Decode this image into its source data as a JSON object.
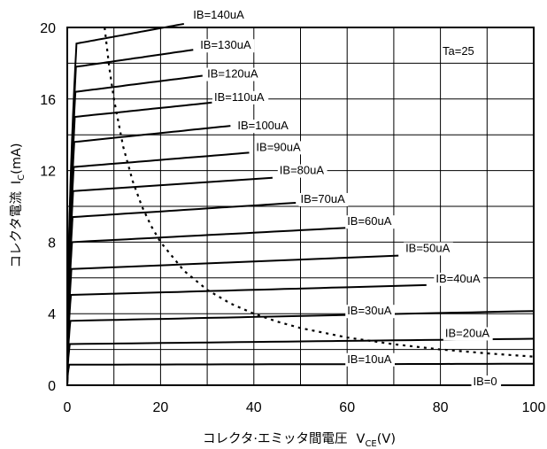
{
  "chart_data": {
    "type": "line",
    "title": "",
    "xlabel_main": "コレクタ·エミッタ間電圧",
    "xlabel_sym": "V",
    "xlabel_sub": "CE",
    "xlabel_unit": "(V)",
    "ylabel_main": "コレクタ電流",
    "ylabel_sym": "I",
    "ylabel_sub": "C",
    "ylabel_unit": "(mA)",
    "xlim": [
      0,
      100
    ],
    "ylim": [
      0,
      20
    ],
    "x_ticks": [
      "0",
      "20",
      "40",
      "60",
      "80",
      "100"
    ],
    "y_ticks": [
      "0",
      "4",
      "8",
      "12",
      "16",
      "20"
    ],
    "grid": true,
    "annotation": "Ta=25",
    "series": [
      {
        "name": "IB=0",
        "values": [
          0,
          0
        ],
        "x_end": 100,
        "label_x": 87,
        "label_y": 0.0
      },
      {
        "name": "IB=10uA",
        "values": [
          1.15,
          1.2
        ],
        "x_end": 100,
        "label_x": 60,
        "label_y": 1.25
      },
      {
        "name": "IB=20uA",
        "values": [
          2.3,
          2.6
        ],
        "x_end": 100,
        "label_x": 81,
        "label_y": 2.7
      },
      {
        "name": "IB=30uA",
        "values": [
          3.6,
          4.15
        ],
        "x_end": 100,
        "label_x": 60,
        "label_y": 3.95
      },
      {
        "name": "IB=40uA",
        "values": [
          5.05,
          5.6
        ],
        "x_end": 77,
        "label_x": 79,
        "label_y": 5.75
      },
      {
        "name": "IB=50uA",
        "values": [
          6.5,
          7.25
        ],
        "x_end": 71,
        "label_x": 72.5,
        "label_y": 7.45
      },
      {
        "name": "IB=60uA",
        "values": [
          8.0,
          8.8
        ],
        "x_end": 60,
        "label_x": 60,
        "label_y": 8.95
      },
      {
        "name": "IB=70uA",
        "values": [
          9.4,
          10.2
        ],
        "x_end": 49,
        "label_x": 50,
        "label_y": 10.2
      },
      {
        "name": "IB=80uA",
        "values": [
          10.85,
          11.6
        ],
        "x_end": 44,
        "label_x": 45.5,
        "label_y": 11.8
      },
      {
        "name": "IB=90uA",
        "values": [
          12.2,
          13.0
        ],
        "x_end": 39,
        "label_x": 40.5,
        "label_y": 13.1
      },
      {
        "name": "IB=100uA",
        "values": [
          13.6,
          14.5
        ],
        "x_end": 35,
        "label_x": 36.5,
        "label_y": 14.3
      },
      {
        "name": "IB=110uA",
        "values": [
          15.0,
          15.8
        ],
        "x_end": 31,
        "label_x": 31.5,
        "label_y": 15.9
      },
      {
        "name": "IB=120uA",
        "values": [
          16.4,
          17.3
        ],
        "x_end": 29,
        "label_x": 30,
        "label_y": 17.2
      },
      {
        "name": "IB=130uA",
        "values": [
          17.8,
          18.75
        ],
        "x_end": 27,
        "label_x": 28.5,
        "label_y": 18.8
      },
      {
        "name": "IB=140uA",
        "values": [
          19.1,
          20.2
        ],
        "x_end": 25,
        "label_x": 27,
        "label_y": 20.5
      }
    ],
    "dissipation_curve": {
      "style": "dotted",
      "x": [
        8,
        9,
        10,
        12,
        14,
        16,
        18,
        20,
        25,
        30,
        35,
        40,
        45,
        50,
        60,
        70,
        80,
        90,
        100
      ],
      "y": [
        20,
        17.78,
        16.0,
        13.33,
        11.43,
        10.0,
        8.89,
        8.0,
        6.4,
        5.33,
        4.57,
        4.0,
        3.56,
        3.2,
        2.67,
        2.29,
        2.0,
        1.78,
        1.6
      ]
    }
  }
}
